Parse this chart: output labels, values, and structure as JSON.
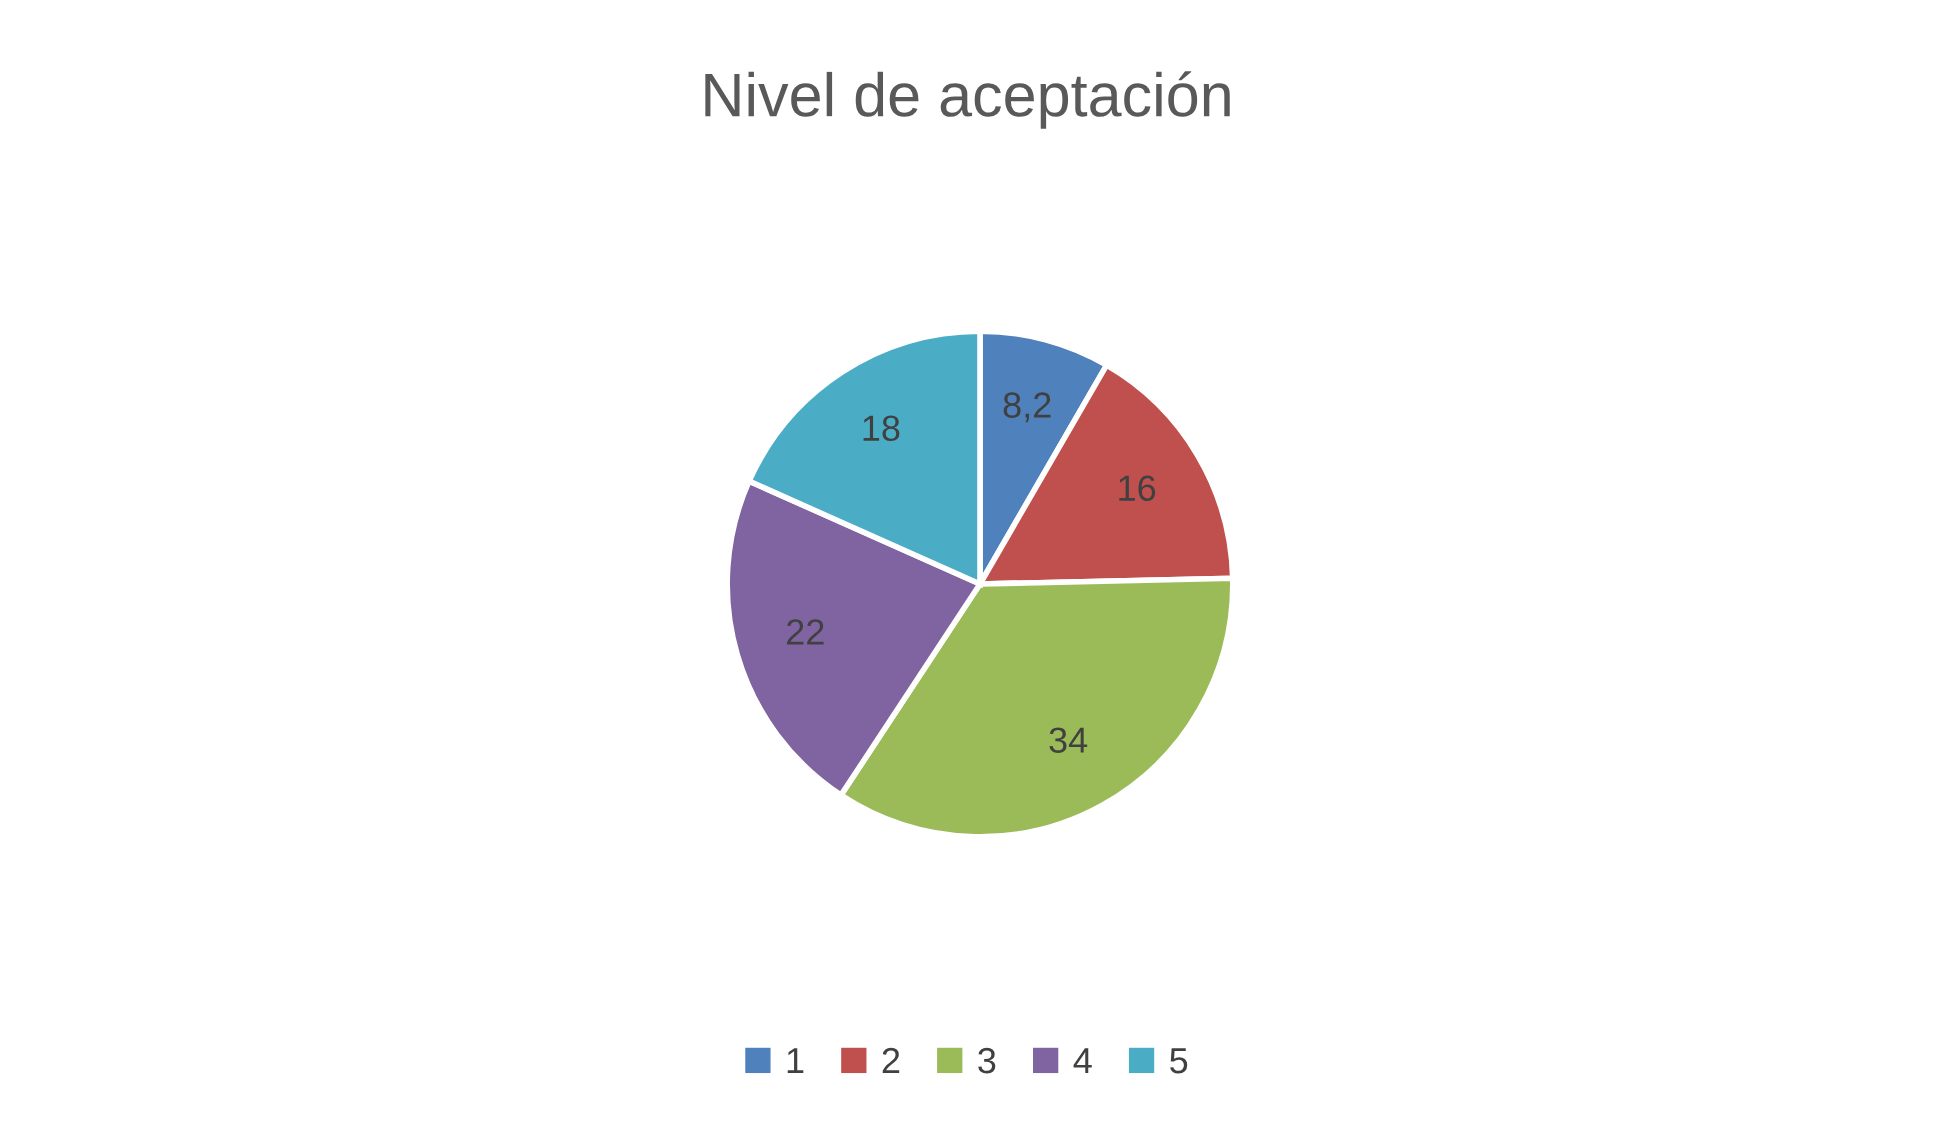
{
  "chart_data": {
    "type": "pie",
    "title": "Nivel de aceptación",
    "categories": [
      "1",
      "2",
      "3",
      "4",
      "5"
    ],
    "values": [
      8.2,
      16,
      34,
      22,
      18
    ],
    "value_labels": [
      "8,2",
      "16",
      "34",
      "22",
      "18"
    ],
    "colors": [
      "#4f81bd",
      "#c0504d",
      "#9bbb59",
      "#8064a2",
      "#4bacc6"
    ],
    "legend": "bottom"
  }
}
